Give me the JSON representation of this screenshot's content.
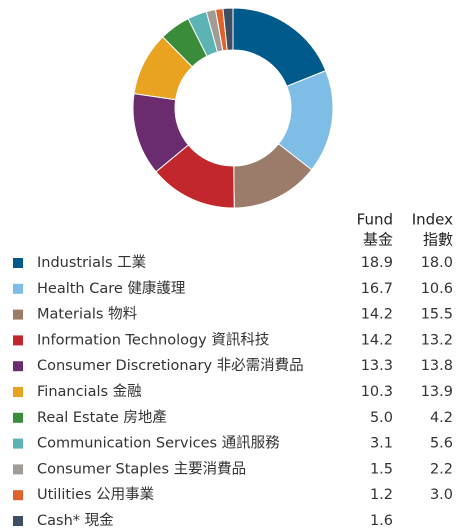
{
  "chart_data": {
    "type": "pie",
    "donut": true,
    "categories": [
      "Industrials 工業",
      "Health Care 健康護理",
      "Materials 物料",
      "Information Technology 資訊科技",
      "Consumer Discretionary 非必需消費品",
      "Financials 金融",
      "Real Estate 房地產",
      "Communication Services 通訊服務",
      "Consumer Staples 主要消費品",
      "Utilities 公用事業",
      "Cash* 現金"
    ],
    "colors": [
      "#005a8b",
      "#7dbde6",
      "#9b7c6b",
      "#c1272d",
      "#6a2c6e",
      "#e9a320",
      "#3b8c3a",
      "#5bb3b3",
      "#a29c96",
      "#e0622a",
      "#3e4f63"
    ],
    "series": [
      {
        "name": [
          "Fund",
          "基金"
        ],
        "values": [
          18.9,
          16.7,
          14.2,
          14.2,
          13.3,
          10.3,
          5.0,
          3.1,
          1.5,
          1.2,
          1.6
        ],
        "value_labels": [
          "18.9",
          "16.7",
          "14.2",
          "14.2",
          "13.3",
          "10.3",
          "5.0",
          "3.1",
          "1.5",
          "1.2",
          "1.6"
        ]
      },
      {
        "name": [
          "Index",
          "指數"
        ],
        "values": [
          18.0,
          10.6,
          15.5,
          13.2,
          13.8,
          13.9,
          4.2,
          5.6,
          2.2,
          3.0,
          null
        ],
        "value_labels": [
          "18.0",
          "10.6",
          "15.5",
          "13.2",
          "13.8",
          "13.9",
          "4.2",
          "5.6",
          "2.2",
          "3.0",
          null
        ]
      }
    ]
  }
}
